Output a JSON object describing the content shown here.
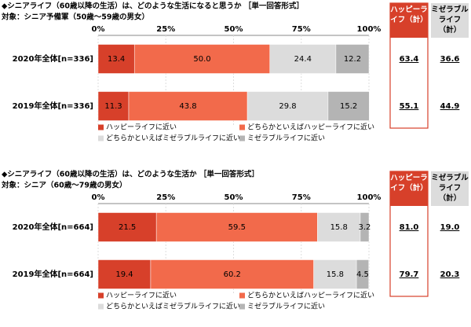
{
  "chart_data": [
    {
      "type": "stacked-bar",
      "title": "◆シニアライフ（60歳以降の生活）は、どのような生活になると思うか ［単一回答形式］",
      "subtitle": "対象：シニア予備軍（50歳～59歳の男女）",
      "categories": [
        "2020年全体[n=336]",
        "2019年全体[n=336]"
      ],
      "series": [
        {
          "name": "ハッピーライフに近い",
          "color": "#d7402a",
          "values": [
            13.4,
            11.3
          ],
          "value_labels": [
            "13.4",
            "11.3"
          ]
        },
        {
          "name": "どちらかといえばハッピーライフに近い",
          "color": "#f26a4b",
          "values": [
            50,
            43.8
          ],
          "value_labels": [
            "50.0",
            "43.8"
          ]
        },
        {
          "name": "どちらかといえばミゼラブルライフに近い",
          "color": "#dcdcdc",
          "values": [
            24.4,
            29.8
          ],
          "value_labels": [
            "24.4",
            "29.8"
          ]
        },
        {
          "name": "ミゼラブルライフに近い",
          "color": "#b4b4b4",
          "values": [
            12.2,
            15.2
          ],
          "value_labels": [
            "12.2",
            "15.2"
          ]
        }
      ],
      "xlim": [
        0,
        100
      ],
      "xticks": [
        {
          "value": 0,
          "label": "0%"
        },
        {
          "value": 25,
          "label": "25%"
        },
        {
          "value": 50,
          "label": "50%"
        },
        {
          "value": 75,
          "label": "75%"
        },
        {
          "value": 100,
          "label": "100%"
        }
      ],
      "summary": [
        {
          "name": "ハッピーライフ（計）",
          "values": [
            63.4,
            55.1
          ]
        },
        {
          "name": "ミゼラブルライフ（計）",
          "values": [
            36.6,
            44.9
          ]
        }
      ]
    },
    {
      "type": "stacked-bar",
      "title": "◆シニアライフ（60歳以降の生活）は、どのような生活か ［単一回答形式］",
      "subtitle": "対象：シニア（60歳～79歳の男女）",
      "categories": [
        "2020年全体[n=664]",
        "2019年全体[n=664]"
      ],
      "series": [
        {
          "name": "ハッピーライフに近い",
          "color": "#d7402a",
          "values": [
            21.5,
            19.4
          ],
          "value_labels": [
            "21.5",
            "19.4"
          ]
        },
        {
          "name": "どちらかといえばハッピーライフに近い",
          "color": "#f26a4b",
          "values": [
            59.5,
            60.2
          ],
          "value_labels": [
            "59.5",
            "60.2"
          ]
        },
        {
          "name": "どちらかといえばミゼラブルライフに近い",
          "color": "#dcdcdc",
          "values": [
            15.8,
            15.8
          ],
          "value_labels": [
            "15.8",
            "15.8"
          ]
        },
        {
          "name": "ミゼラブルライフに近い",
          "color": "#b4b4b4",
          "values": [
            3.2,
            4.5
          ],
          "value_labels": [
            "3.2",
            "4.5"
          ]
        }
      ],
      "xlim": [
        0,
        100
      ],
      "xticks": [
        {
          "value": 0,
          "label": "0%"
        },
        {
          "value": 25,
          "label": "25%"
        },
        {
          "value": 50,
          "label": "50%"
        },
        {
          "value": 75,
          "label": "75%"
        },
        {
          "value": 100,
          "label": "100%"
        }
      ],
      "summary": [
        {
          "name": "ハッピーライフ（計）",
          "values": [
            81,
            79.7
          ],
          "value_labels": [
            "81.0",
            "79.7"
          ]
        },
        {
          "name": "ミゼラブルライフ（計）",
          "values": [
            19,
            20.3
          ],
          "value_labels": [
            "19.0",
            "20.3"
          ]
        }
      ]
    }
  ]
}
